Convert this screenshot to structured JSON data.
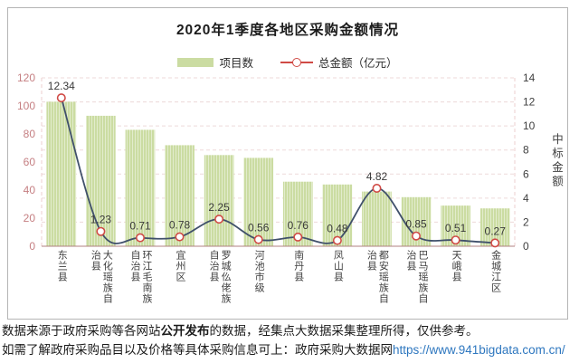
{
  "chart_data": {
    "type": "bar",
    "title": "2020年1季度各地区采购金额情况",
    "categories": [
      "东兰县",
      "大化瑶族自治县",
      "环江毛南族自治县",
      "宜州区",
      "罗城仫佬族自治县",
      "河池市级",
      "南丹县",
      "凤山县",
      "都安瑶族自治县",
      "巴马瑶族自治县",
      "天峨县",
      "金城江区"
    ],
    "series": [
      {
        "name": "项目数",
        "type": "bar",
        "axis": "left",
        "color": "#cbdca2",
        "values": [
          103,
          93,
          83,
          72,
          65,
          63,
          46,
          44,
          39,
          35,
          29,
          27
        ]
      },
      {
        "name": "总金额（亿元）",
        "type": "line",
        "axis": "right",
        "color": "#40506b",
        "marker_color": "#d04a45",
        "values": [
          12.34,
          1.23,
          0.71,
          0.78,
          2.25,
          0.56,
          0.76,
          0.48,
          4.82,
          0.85,
          0.51,
          0.27
        ],
        "point_labels_visible": true
      }
    ],
    "left_axis": {
      "min": 0,
      "max": 120,
      "step": 20,
      "tick_color": "#c57f82"
    },
    "right_axis": {
      "min": 0,
      "max": 14,
      "step": 2,
      "title": "中标金额",
      "tick_color": "#3f3f3f"
    },
    "grid": {
      "horizontal": true,
      "style": "dashed",
      "color": "#eddada"
    },
    "legend_position": "top"
  },
  "footer": {
    "line1_pre": "数据来源于政府采购等各网站",
    "line1_bold": "公开发布",
    "line1_post": "的数据，经集点大数据采集整理所得，仅供参考。",
    "line2_text": "如需了解政府采购品目以及价格等具体采购信息可上：政府采购大数据网",
    "line2_link": "https://www.941bigdata.com.cn/",
    "link_color": "#2e77bf"
  }
}
